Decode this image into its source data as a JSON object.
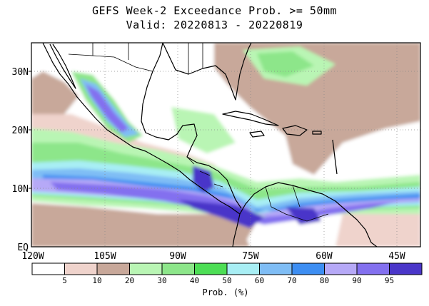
{
  "title": "GEFS Week-2 Exceedance Prob. >= 50mm",
  "valid": "Valid: 20220813 - 20220819",
  "map": {
    "lat_labels": [
      "30N",
      "20N",
      "10N",
      "EQ"
    ],
    "lon_labels": [
      "120W",
      "105W",
      "90W",
      "75W",
      "60W",
      "45W"
    ]
  },
  "colorbar": {
    "label": "Prob. (%)",
    "ticks": [
      "5",
      "10",
      "20",
      "30",
      "40",
      "50",
      "60",
      "70",
      "80",
      "90",
      "95"
    ],
    "colors": [
      "#ffffff",
      "#efd3cc",
      "#c8a89a",
      "#b9f5b4",
      "#8de68a",
      "#4dde55",
      "#a8eef4",
      "#7fbdf5",
      "#3d8ef2",
      "#b6a9f7",
      "#8370ef",
      "#4a36c9"
    ]
  }
}
